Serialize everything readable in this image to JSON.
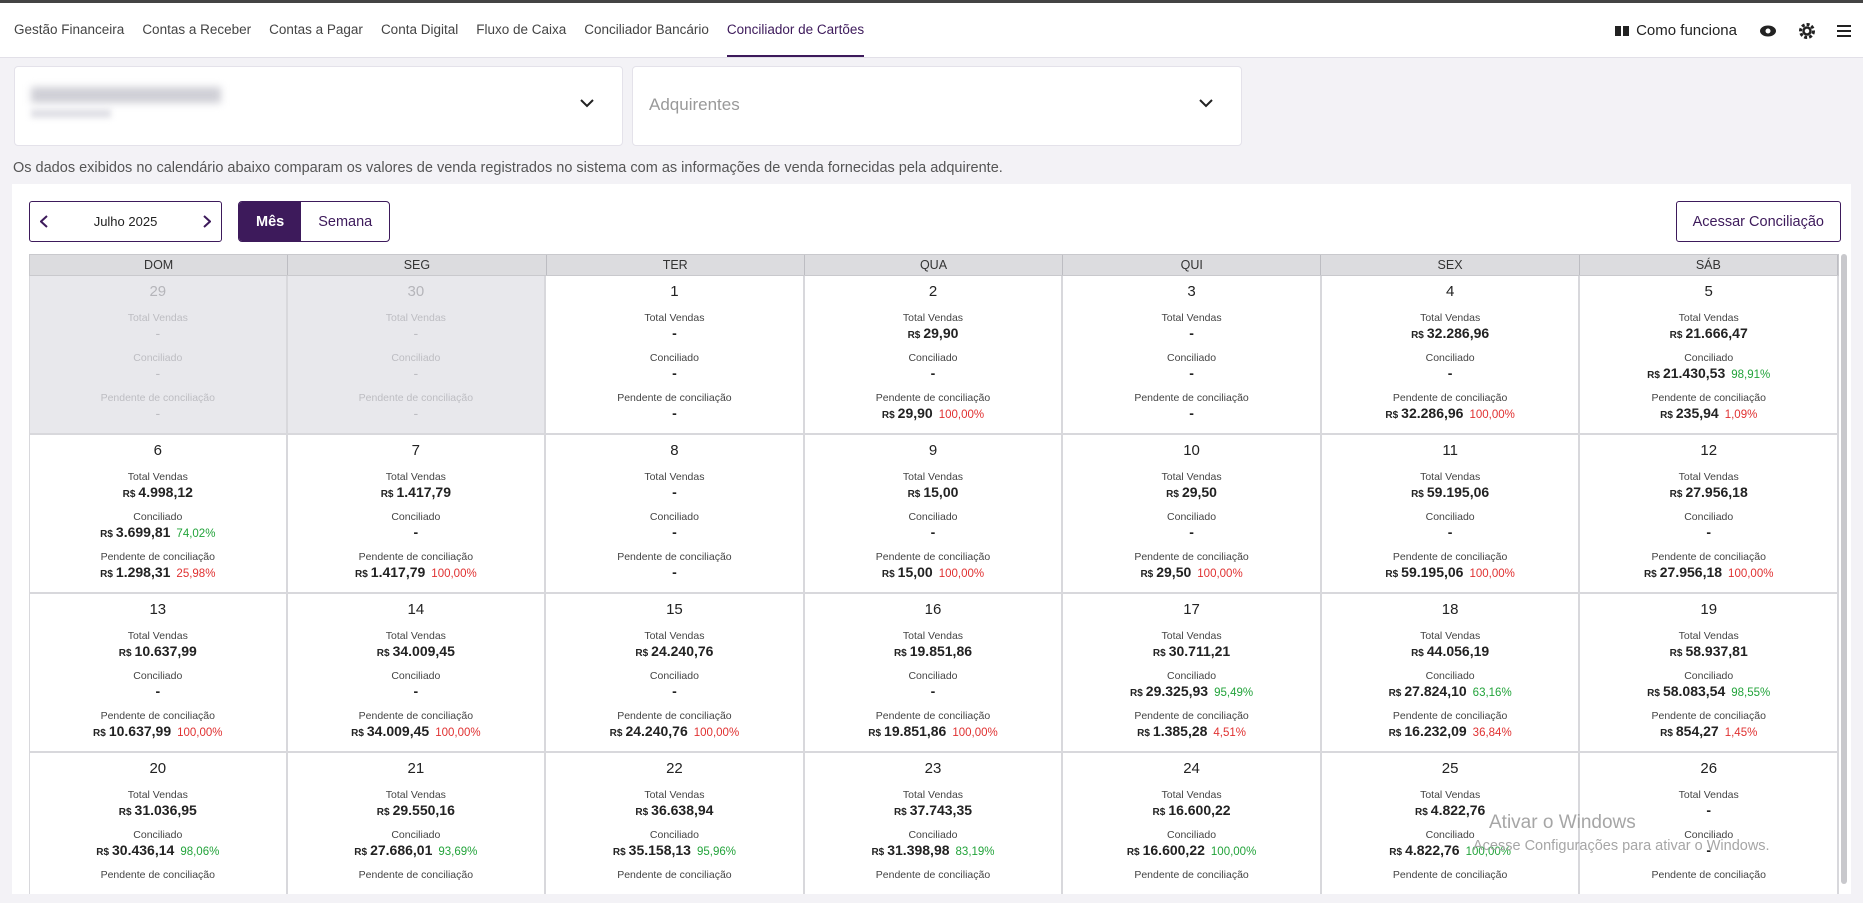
{
  "nav": {
    "items": [
      "Gestão Financeira",
      "Contas a Receber",
      "Contas a Pagar",
      "Conta Digital",
      "Fluxo de Caixa",
      "Conciliador Bancário",
      "Conciliador de Cartões"
    ],
    "active": 6,
    "help": "Como funciona"
  },
  "filters": {
    "acquirers_placeholder": "Adquirentes"
  },
  "description": "Os dados exibidos no calendário abaixo comparam os valores de venda registrados no sistema com as informações de venda fornecidas pela adquirente.",
  "controls": {
    "month": "Julho 2025",
    "views": [
      "Mês",
      "Semana"
    ],
    "active_view": 0,
    "action": "Acessar Conciliação"
  },
  "labels": {
    "total": "Total Vendas",
    "conciliado": "Conciliado",
    "pendente": "Pendente de conciliação"
  },
  "currency": "R$",
  "empty": "-",
  "calendar": {
    "weekdays": [
      "DOM",
      "SEG",
      "TER",
      "QUA",
      "QUI",
      "SEX",
      "SÁB"
    ],
    "weeks": [
      [
        {
          "day": "29",
          "other_month": true,
          "total": null,
          "conciliado": {
            "value": null
          },
          "pendente": {
            "value": null
          }
        },
        {
          "day": "30",
          "other_month": true,
          "total": null,
          "conciliado": {
            "value": null
          },
          "pendente": {
            "value": null
          }
        },
        {
          "day": "1",
          "total": null,
          "conciliado": {
            "value": null
          },
          "pendente": {
            "value": null
          }
        },
        {
          "day": "2",
          "total": "29,90",
          "conciliado": {
            "value": null
          },
          "pendente": {
            "value": "29,90",
            "pct": "100,00%"
          }
        },
        {
          "day": "3",
          "total": null,
          "conciliado": {
            "value": null
          },
          "pendente": {
            "value": null
          }
        },
        {
          "day": "4",
          "total": "32.286,96",
          "conciliado": {
            "value": null
          },
          "pendente": {
            "value": "32.286,96",
            "pct": "100,00%"
          }
        },
        {
          "day": "5",
          "total": "21.666,47",
          "conciliado": {
            "value": "21.430,53",
            "pct": "98,91%"
          },
          "pendente": {
            "value": "235,94",
            "pct": "1,09%"
          }
        }
      ],
      [
        {
          "day": "6",
          "total": "4.998,12",
          "conciliado": {
            "value": "3.699,81",
            "pct": "74,02%"
          },
          "pendente": {
            "value": "1.298,31",
            "pct": "25,98%"
          }
        },
        {
          "day": "7",
          "total": "1.417,79",
          "conciliado": {
            "value": null
          },
          "pendente": {
            "value": "1.417,79",
            "pct": "100,00%"
          }
        },
        {
          "day": "8",
          "total": null,
          "conciliado": {
            "value": null
          },
          "pendente": {
            "value": null
          }
        },
        {
          "day": "9",
          "total": "15,00",
          "conciliado": {
            "value": null
          },
          "pendente": {
            "value": "15,00",
            "pct": "100,00%"
          }
        },
        {
          "day": "10",
          "total": "29,50",
          "conciliado": {
            "value": null
          },
          "pendente": {
            "value": "29,50",
            "pct": "100,00%"
          }
        },
        {
          "day": "11",
          "total": "59.195,06",
          "conciliado": {
            "value": null
          },
          "pendente": {
            "value": "59.195,06",
            "pct": "100,00%"
          }
        },
        {
          "day": "12",
          "total": "27.956,18",
          "conciliado": {
            "value": null
          },
          "pendente": {
            "value": "27.956,18",
            "pct": "100,00%"
          }
        }
      ],
      [
        {
          "day": "13",
          "total": "10.637,99",
          "conciliado": {
            "value": null
          },
          "pendente": {
            "value": "10.637,99",
            "pct": "100,00%"
          }
        },
        {
          "day": "14",
          "total": "34.009,45",
          "conciliado": {
            "value": null
          },
          "pendente": {
            "value": "34.009,45",
            "pct": "100,00%"
          }
        },
        {
          "day": "15",
          "total": "24.240,76",
          "conciliado": {
            "value": null
          },
          "pendente": {
            "value": "24.240,76",
            "pct": "100,00%"
          }
        },
        {
          "day": "16",
          "total": "19.851,86",
          "conciliado": {
            "value": null
          },
          "pendente": {
            "value": "19.851,86",
            "pct": "100,00%"
          }
        },
        {
          "day": "17",
          "total": "30.711,21",
          "conciliado": {
            "value": "29.325,93",
            "pct": "95,49%"
          },
          "pendente": {
            "value": "1.385,28",
            "pct": "4,51%"
          }
        },
        {
          "day": "18",
          "total": "44.056,19",
          "conciliado": {
            "value": "27.824,10",
            "pct": "63,16%"
          },
          "pendente": {
            "value": "16.232,09",
            "pct": "36,84%"
          }
        },
        {
          "day": "19",
          "total": "58.937,81",
          "conciliado": {
            "value": "58.083,54",
            "pct": "98,55%"
          },
          "pendente": {
            "value": "854,27",
            "pct": "1,45%"
          }
        }
      ],
      [
        {
          "day": "20",
          "total": "31.036,95",
          "conciliado": {
            "value": "30.436,14",
            "pct": "98,06%"
          }
        },
        {
          "day": "21",
          "total": "29.550,16",
          "conciliado": {
            "value": "27.686,01",
            "pct": "93,69%"
          }
        },
        {
          "day": "22",
          "total": "36.638,94",
          "conciliado": {
            "value": "35.158,13",
            "pct": "95,96%"
          }
        },
        {
          "day": "23",
          "total": "37.743,35",
          "conciliado": {
            "value": "31.398,98",
            "pct": "83,19%"
          }
        },
        {
          "day": "24",
          "total": "16.600,22",
          "conciliado": {
            "value": "16.600,22",
            "pct": "100,00%"
          }
        },
        {
          "day": "25",
          "total": "4.822,76",
          "conciliado": {
            "value": "4.822,76",
            "pct": "100,00%"
          }
        },
        {
          "day": "26",
          "total": null,
          "conciliado": {
            "value": null
          }
        }
      ]
    ]
  },
  "watermark": {
    "title": "Ativar o Windows",
    "text": "Acesse Configurações para ativar o Windows."
  }
}
